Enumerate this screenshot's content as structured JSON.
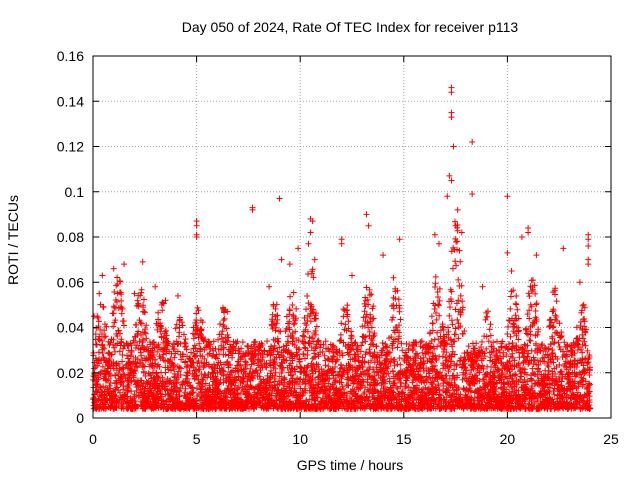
{
  "chart_data": {
    "type": "scatter",
    "title": "Day 050 of 2024, Rate Of TEC Index for receiver p113",
    "xlabel": "GPS time / hours",
    "ylabel": "ROTI / TECUs",
    "xlim": [
      0,
      25
    ],
    "ylim": [
      0,
      0.16
    ],
    "x_ticks": [
      "0",
      "5",
      "10",
      "15",
      "20",
      "25"
    ],
    "y_ticks": [
      "0",
      "0.02",
      "0.04",
      "0.06",
      "0.08",
      "0.1",
      "0.12",
      "0.14",
      "0.16"
    ],
    "grid": true,
    "marker": "+",
    "color": "#ff0000",
    "series": [
      {
        "name": "ROTI",
        "points": [
          [
            0.05,
            0.045
          ],
          [
            0.3,
            0.055
          ],
          [
            0.45,
            0.063
          ],
          [
            1.0,
            0.066
          ],
          [
            1.5,
            0.068
          ],
          [
            2.0,
            0.055
          ],
          [
            2.4,
            0.069
          ],
          [
            3.0,
            0.058
          ],
          [
            3.5,
            0.052
          ],
          [
            4.1,
            0.054
          ],
          [
            5.0,
            0.087
          ],
          [
            5.0,
            0.085
          ],
          [
            5.0,
            0.081
          ],
          [
            5.0,
            0.08
          ],
          [
            6.5,
            0.047
          ],
          [
            7.7,
            0.093
          ],
          [
            7.7,
            0.092
          ],
          [
            8.5,
            0.058
          ],
          [
            9.0,
            0.097
          ],
          [
            9.1,
            0.07
          ],
          [
            9.5,
            0.068
          ],
          [
            9.9,
            0.075
          ],
          [
            10.5,
            0.088
          ],
          [
            10.6,
            0.087
          ],
          [
            10.5,
            0.082
          ],
          [
            10.4,
            0.077
          ],
          [
            10.7,
            0.07
          ],
          [
            12.0,
            0.079
          ],
          [
            12.0,
            0.077
          ],
          [
            12.5,
            0.063
          ],
          [
            13.2,
            0.09
          ],
          [
            13.3,
            0.085
          ],
          [
            14.0,
            0.072
          ],
          [
            14.5,
            0.062
          ],
          [
            14.8,
            0.079
          ],
          [
            16.5,
            0.081
          ],
          [
            16.7,
            0.077
          ],
          [
            17.3,
            0.146
          ],
          [
            17.3,
            0.144
          ],
          [
            17.3,
            0.135
          ],
          [
            17.3,
            0.133
          ],
          [
            17.4,
            0.12
          ],
          [
            17.2,
            0.107
          ],
          [
            17.3,
            0.105
          ],
          [
            17.1,
            0.098
          ],
          [
            17.6,
            0.092
          ],
          [
            17.8,
            0.082
          ],
          [
            17.5,
            0.085
          ],
          [
            18.3,
            0.122
          ],
          [
            18.3,
            0.099
          ],
          [
            18.8,
            0.058
          ],
          [
            20.0,
            0.098
          ],
          [
            20.0,
            0.073
          ],
          [
            20.2,
            0.065
          ],
          [
            20.7,
            0.08
          ],
          [
            21.0,
            0.084
          ],
          [
            21.0,
            0.082
          ],
          [
            21.4,
            0.072
          ],
          [
            22.7,
            0.075
          ],
          [
            23.9,
            0.081
          ],
          [
            23.9,
            0.079
          ],
          [
            23.9,
            0.076
          ],
          [
            23.9,
            0.07
          ],
          [
            23.9,
            0.068
          ],
          [
            23.5,
            0.06
          ]
        ]
      }
    ]
  }
}
